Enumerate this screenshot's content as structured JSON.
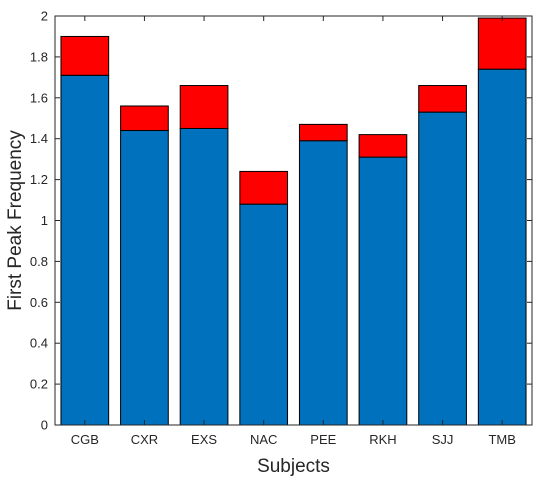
{
  "chart_data": {
    "type": "bar",
    "stacked": true,
    "categories": [
      "CGB",
      "CXR",
      "EXS",
      "NAC",
      "PEE",
      "RKH",
      "SJJ",
      "TMB"
    ],
    "series": [
      {
        "color": "#0072BD",
        "values": [
          1.71,
          1.44,
          1.45,
          1.08,
          1.39,
          1.31,
          1.53,
          1.74
        ]
      },
      {
        "color": "#FF0000",
        "values": [
          0.19,
          0.12,
          0.21,
          0.16,
          0.08,
          0.11,
          0.13,
          0.25
        ]
      }
    ],
    "xlabel": "Subjects",
    "ylabel": "First Peak Frequency",
    "ylim": [
      0,
      2
    ],
    "yticks": [
      "0",
      "0.2",
      "0.4",
      "0.6",
      "0.8",
      "1",
      "1.2",
      "1.4",
      "1.6",
      "1.8",
      "2"
    ],
    "grid": false,
    "box": true
  }
}
